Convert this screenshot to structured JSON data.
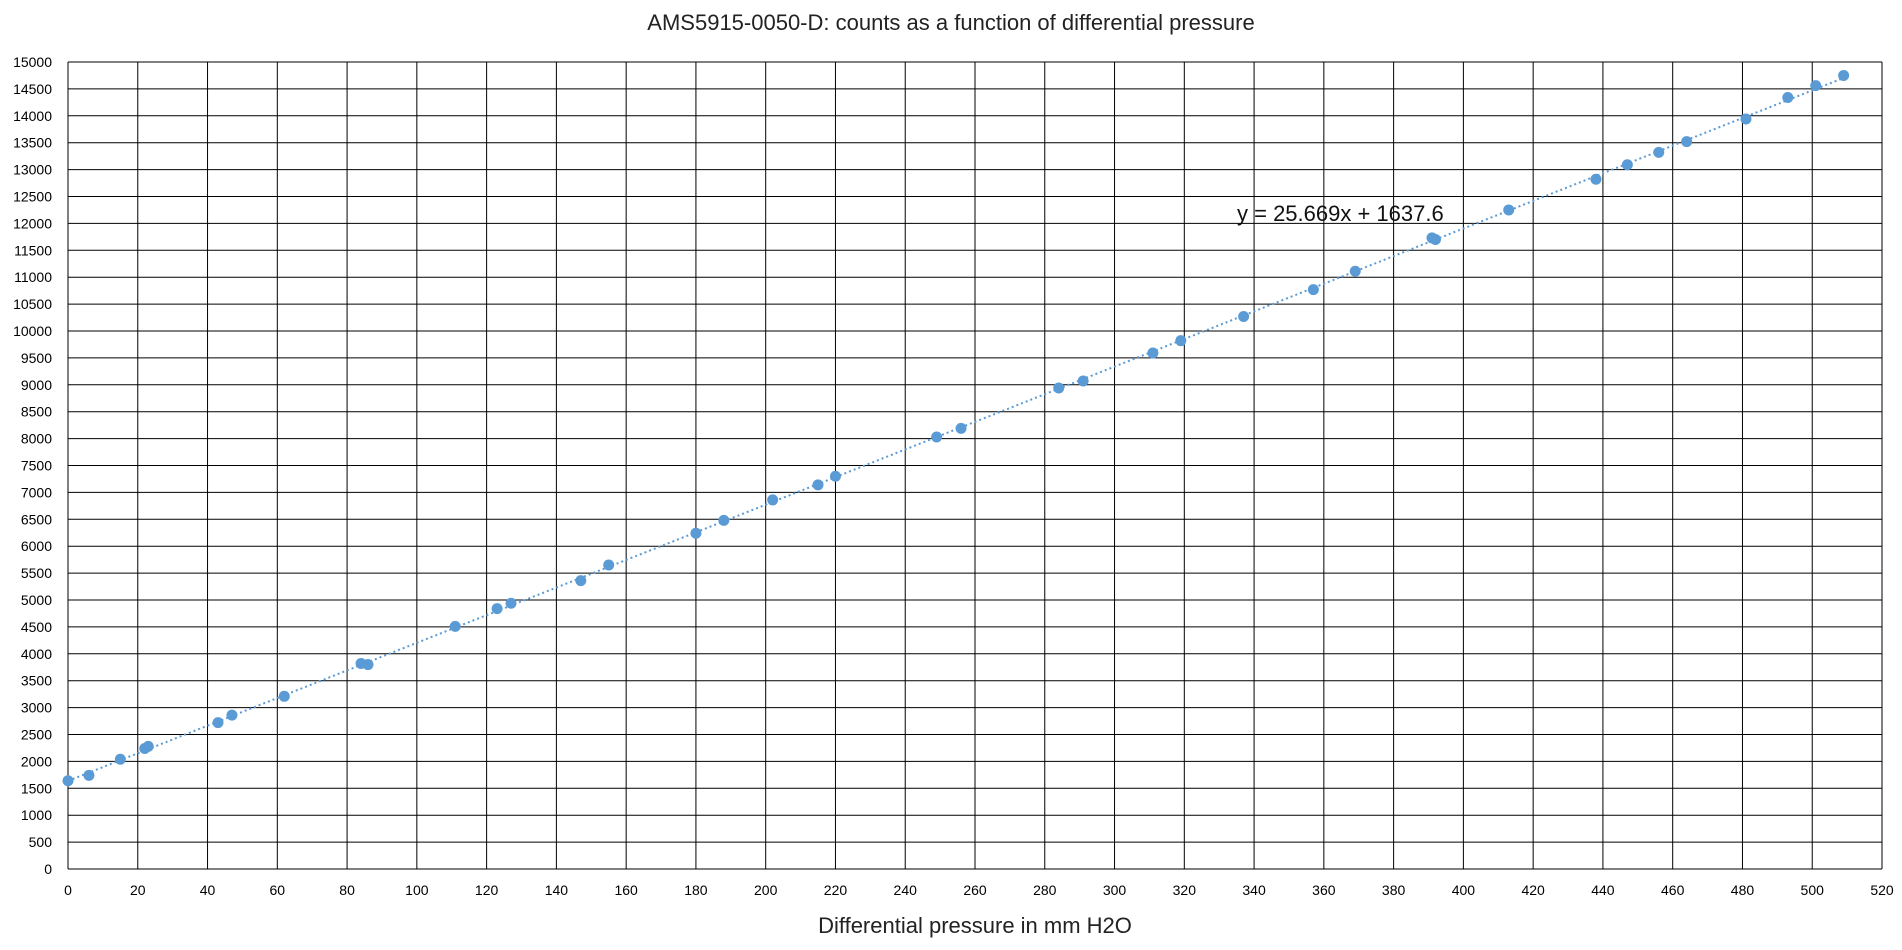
{
  "chart_data": {
    "type": "scatter",
    "title": "AMS5915-0050-D: counts as a function of differential pressure",
    "xlabel": "Differential pressure in mm H2O",
    "ylabel": "",
    "xlim": [
      0,
      520
    ],
    "ylim": [
      0,
      15000
    ],
    "x_ticks": [
      0,
      20,
      40,
      60,
      80,
      100,
      120,
      140,
      160,
      180,
      200,
      220,
      240,
      260,
      280,
      300,
      320,
      340,
      360,
      380,
      400,
      420,
      440,
      460,
      480,
      500,
      520
    ],
    "y_ticks": [
      0,
      500,
      1000,
      1500,
      2000,
      2500,
      3000,
      3500,
      4000,
      4500,
      5000,
      5500,
      6000,
      6500,
      7000,
      7500,
      8000,
      8500,
      9000,
      9500,
      10000,
      10500,
      11000,
      11500,
      12000,
      12500,
      13000,
      13500,
      14000,
      14500,
      15000
    ],
    "grid": true,
    "legend": "none",
    "colors": {
      "points": "#5b9bd5",
      "trendline": "#5b9bd5",
      "grid": "#000000"
    },
    "series": [
      {
        "x": [
          0,
          6,
          15,
          22,
          23,
          43,
          47,
          62,
          84,
          86,
          111,
          123,
          127,
          147,
          155,
          180,
          188,
          202,
          215,
          220,
          249,
          256,
          284,
          291,
          311,
          319,
          337,
          357,
          369,
          391,
          392,
          413,
          438,
          447,
          456,
          464,
          481,
          493,
          501,
          509
        ],
        "y": [
          1640,
          1740,
          2040,
          2240,
          2280,
          2720,
          2860,
          3210,
          3820,
          3800,
          4510,
          4840,
          4940,
          5360,
          5650,
          6240,
          6480,
          6860,
          7140,
          7300,
          8030,
          8190,
          8940,
          9070,
          9590,
          9820,
          10270,
          10770,
          11110,
          11730,
          11700,
          12250,
          12820,
          13090,
          13320,
          13520,
          13940,
          14340,
          14560,
          14750
        ]
      }
    ],
    "trendline": {
      "type": "linear",
      "slope": 25.669,
      "intercept": 1637.6,
      "x_range": [
        0,
        510
      ],
      "label": "y = 25.669x + 1637.6"
    }
  }
}
